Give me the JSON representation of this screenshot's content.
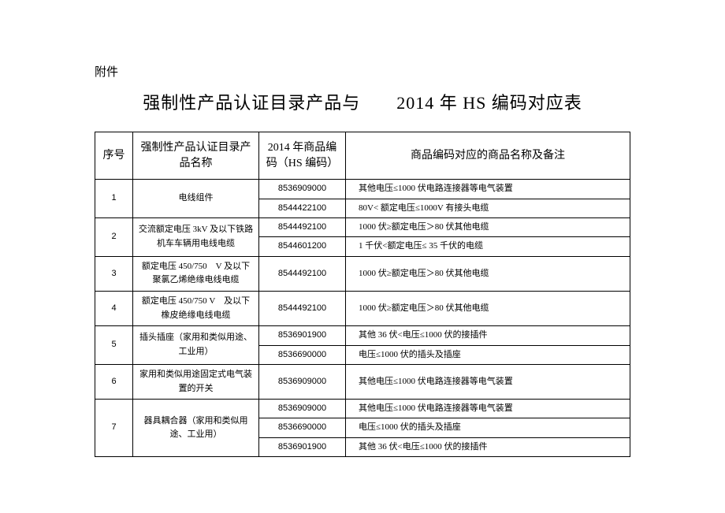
{
  "attachment_label": "附件",
  "title": "强制性产品认证目录产品与　　2014  年 HS  编码对应表",
  "columns": [
    "序号",
    "强制性产品认证目录产品名称",
    "2014  年商品编码（HS 编码）",
    "商品编码对应的商品名称及备注"
  ],
  "rows": [
    {
      "seq": "1",
      "name": "电线组件",
      "hs": "8536909000",
      "desc": "其他电压≤1000  伏电路连接器等电气装置"
    },
    {
      "seq": "",
      "name": "",
      "hs": "8544422100",
      "desc": "80V< 额定电压≤1000V   有接头电缆"
    },
    {
      "seq": "2",
      "name": "交流额定电压   3kV 及以下铁路机车车辆用电线电缆",
      "hs": "8544492100",
      "desc": "1000  伏≥额定电压＞80 伏其他电缆"
    },
    {
      "seq": "",
      "name": "",
      "hs": "8544601200",
      "desc": "1 千伏<额定电压≤ 35 千伏的电缆"
    },
    {
      "seq": "3",
      "name": "额定电压  450/750　V 及以下聚氯乙烯绝缘电线电缆",
      "hs": "8544492100",
      "desc": "1000  伏≥额定电压＞80 伏其他电缆"
    },
    {
      "seq": "4",
      "name": "额定电压   450/750 V　及以下橡皮绝缘电线电缆",
      "hs": "8544492100",
      "desc": "1000  伏≥额定电压＞80 伏其他电缆"
    },
    {
      "seq": "5",
      "name": "插头插座（家用和类似用途、工业用）",
      "hs": "8536901900",
      "desc": "其他  36 伏<电压≤1000  伏的接插件"
    },
    {
      "seq": "",
      "name": "",
      "hs": "8536690000",
      "desc": "电压≤1000  伏的插头及插座"
    },
    {
      "seq": "6",
      "name": "家用和类似用途固定式电气装置的开关",
      "hs": "8536909000",
      "desc": "其他电压≤1000 伏电路连接器等电气装置"
    },
    {
      "seq": "7",
      "name": "器具耦合器（家用和类似用途、工业用）",
      "hs": "8536909000",
      "desc": "其他电压≤1000  伏电路连接器等电气装置"
    },
    {
      "seq": "",
      "name": "",
      "hs": "8536690000",
      "desc": "电压≤1000  伏的插头及插座"
    },
    {
      "seq": "",
      "name": "",
      "hs": "8536901900",
      "desc": "其他  36 伏<电压≤1000  伏的接插件"
    }
  ],
  "rowspans": {
    "0": {
      "seq": 2,
      "name": 2
    },
    "2": {
      "seq": 2,
      "name": 2
    },
    "6": {
      "seq": 2,
      "name": 2
    },
    "9": {
      "seq": 3,
      "name": 3
    }
  }
}
